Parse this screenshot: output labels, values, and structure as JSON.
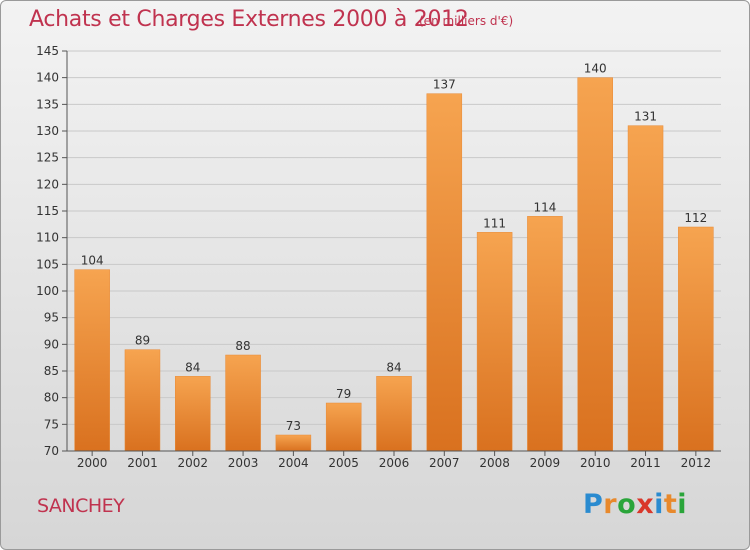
{
  "title": "Achats et Charges Externes 2000 à 2012",
  "subtitle": "(en milliers d'€)",
  "location": "SANCHEY",
  "brand": {
    "letters": [
      "P",
      "r",
      "o",
      "x",
      "i",
      "t",
      "i"
    ],
    "colors": [
      "#2a8bd0",
      "#e8892c",
      "#2aa53a",
      "#d9382b",
      "#2a8bd0",
      "#e8892c",
      "#2aa53a"
    ]
  },
  "colors": {
    "title": "#c0334f",
    "bar_top": "#f6a450",
    "bar_bottom": "#d9711f",
    "grid": "#c9c9c9"
  },
  "chart_data": {
    "type": "bar",
    "title": "Achats et Charges Externes 2000 à 2012",
    "subtitle": "(en milliers d'€)",
    "categories": [
      "2000",
      "2001",
      "2002",
      "2003",
      "2004",
      "2005",
      "2006",
      "2007",
      "2008",
      "2009",
      "2010",
      "2011",
      "2012"
    ],
    "values": [
      104,
      89,
      84,
      88,
      73,
      79,
      84,
      137,
      111,
      114,
      140,
      131,
      112
    ],
    "ylim": [
      70,
      145
    ],
    "yticks": [
      70,
      75,
      80,
      85,
      90,
      95,
      100,
      105,
      110,
      115,
      120,
      125,
      130,
      135,
      140,
      145
    ],
    "grid": true,
    "data_labels": true
  }
}
